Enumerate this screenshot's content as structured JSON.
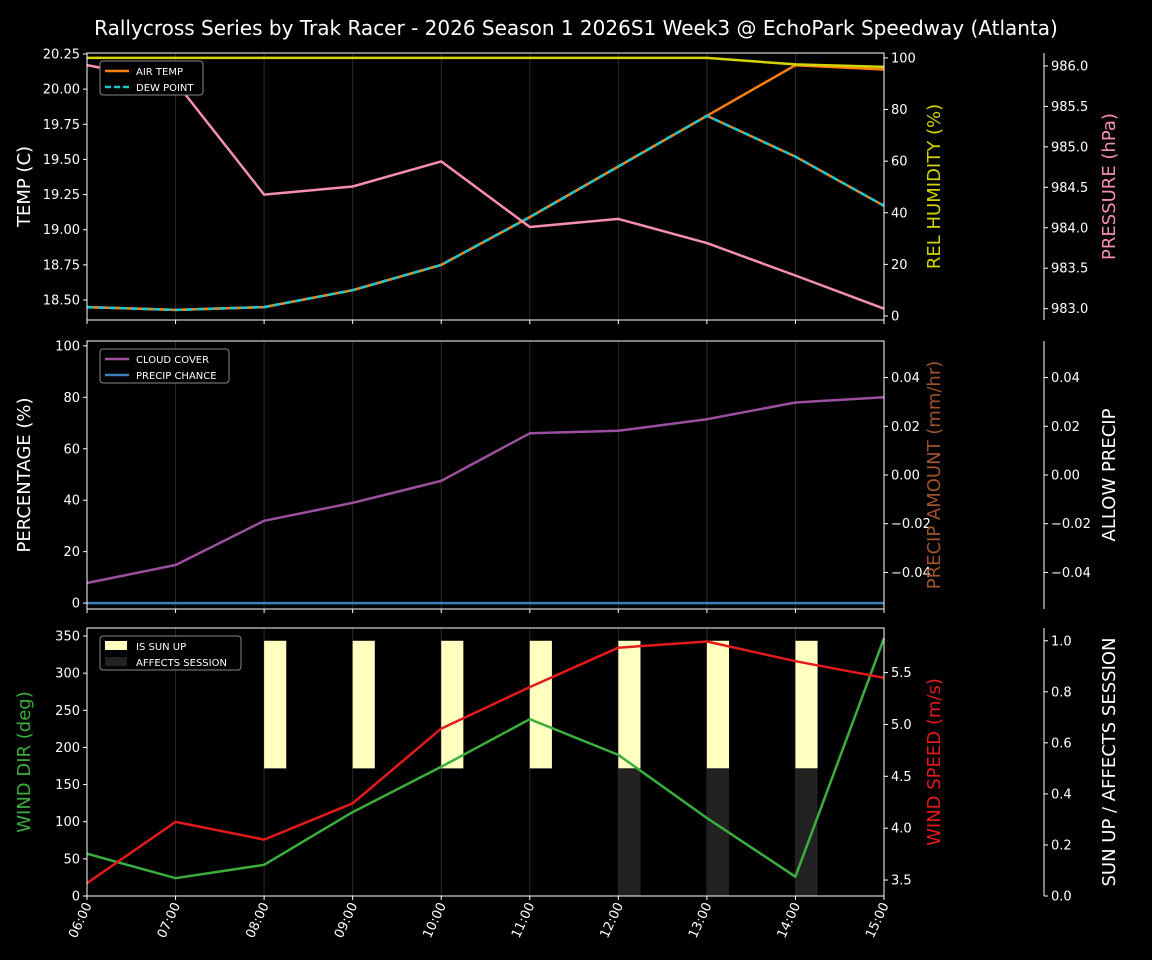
{
  "title": "Rallycross Series by Trak Racer - 2026 Season 1 2026S1 Week3 @ EchoPark Speedway (Atlanta)",
  "chart_data": {
    "type": "line",
    "x": [
      "06:00",
      "07:00",
      "08:00",
      "09:00",
      "10:00",
      "11:00",
      "12:00",
      "13:00",
      "14:00",
      "15:00"
    ],
    "panels": [
      {
        "axes": [
          {
            "label": "TEMP (C)",
            "color": "#ffffff",
            "side": "left",
            "ylim": [
              18.358,
              20.257
            ],
            "ticks": [
              "18.50",
              "18.75",
              "19.00",
              "19.25",
              "19.50",
              "19.75",
              "20.00",
              "20.25"
            ]
          },
          {
            "label": "REL HUMIDITY (%)",
            "color": "#d4d400",
            "side": "right",
            "ylim": [
              -1.55,
              101.9
            ],
            "ticks": [
              "0",
              "20",
              "40",
              "60",
              "80",
              "100"
            ]
          },
          {
            "label": "PRESSURE (hPa)",
            "color": "#f48fb1",
            "side": "far-right",
            "ylim": [
              982.86,
              986.16
            ],
            "ticks": [
              "983.0",
              "983.5",
              "984.0",
              "984.5",
              "985.0",
              "985.5",
              "986.0"
            ]
          }
        ],
        "series": [
          {
            "name": "AIR TEMP",
            "axis": 0,
            "color": "#ff7f0e",
            "dash": false,
            "values": [
              18.45,
              18.43,
              18.45,
              18.57,
              18.75,
              19.09,
              19.45,
              19.81,
              20.17,
              20.14
            ]
          },
          {
            "name": "DEW POINT",
            "axis": 0,
            "color": "#17c8d0",
            "dash": true,
            "values": [
              18.45,
              18.43,
              18.45,
              18.57,
              18.75,
              19.09,
              19.45,
              19.81,
              19.52,
              19.17
            ]
          },
          {
            "axis": 1,
            "color": "#d4d400",
            "dash": false,
            "values": [
              100,
              100,
              100,
              100,
              100,
              100,
              100,
              100,
              97.5,
              96.5
            ]
          },
          {
            "axis": 2,
            "color": "#f48fb1",
            "dash": false,
            "values": [
              986.01,
              985.8,
              984.41,
              984.51,
              984.82,
              984.01,
              984.11,
              983.81,
              983.41,
              983.0
            ]
          }
        ],
        "legend": [
          "AIR TEMP",
          "DEW POINT"
        ],
        "legend_position": "top-left"
      },
      {
        "axes": [
          {
            "label": "PERCENTAGE (%)",
            "color": "#ffffff",
            "side": "left",
            "ylim": [
              -2.3,
              101.9
            ],
            "ticks": [
              "0",
              "20",
              "40",
              "60",
              "80",
              "100"
            ]
          },
          {
            "label": "PRECIP AMOUNT (mm/hr)",
            "color": "#a0522d",
            "side": "right",
            "ylim": [
              -0.055,
              0.055
            ],
            "ticks": [
              "−0.04",
              "−0.02",
              "0.00",
              "0.02",
              "0.04"
            ]
          },
          {
            "label": "ALLOW PRECIP",
            "color": "#ffffff",
            "side": "far-right",
            "ylim": [
              -0.055,
              0.055
            ],
            "ticks": [
              "−0.04",
              "−0.02",
              "0.00",
              "0.02",
              "0.04"
            ]
          }
        ],
        "series": [
          {
            "name": "CLOUD COVER",
            "axis": 0,
            "color": "#9b4f9f",
            "dash": false,
            "values": [
              7.8,
              14.8,
              32,
              39,
              47.5,
              66,
              67,
              71.5,
              78,
              80
            ]
          },
          {
            "name": "PRECIP CHANCE",
            "axis": 0,
            "color": "#3a7fc0",
            "dash": false,
            "values": [
              0,
              0,
              0,
              0,
              0,
              0,
              0,
              0,
              0,
              0
            ]
          }
        ],
        "legend": [
          "CLOUD COVER",
          "PRECIP CHANCE"
        ],
        "legend_position": "top-left"
      },
      {
        "axes": [
          {
            "label": "WIND DIR (deg)",
            "color": "#3cae3c",
            "side": "left",
            "ylim": [
              0,
              360.8
            ],
            "ticks": [
              "0",
              "50",
              "100",
              "150",
              "200",
              "250",
              "300",
              "350"
            ]
          },
          {
            "label": "WIND SPEED (m/s)",
            "color": "#e31a1c",
            "side": "right",
            "ylim": [
              3.346,
              5.93
            ],
            "ticks": [
              "3.5",
              "4.0",
              "4.5",
              "5.0",
              "5.5"
            ]
          },
          {
            "label": "SUN UP / AFFECTS SESSION",
            "color": "#ffffff",
            "side": "far-right",
            "ylim": [
              0,
              1.05
            ],
            "ticks": [
              "0.0",
              "0.2",
              "0.4",
              "0.6",
              "0.8",
              "1.0"
            ]
          }
        ],
        "series": [
          {
            "axis": 0,
            "color": "#3cae3c",
            "dash": false,
            "values": [
              57,
              24,
              42,
              113,
              174,
              238,
              190,
              105,
              26,
              347
            ]
          },
          {
            "axis": 1,
            "color": "#e31a1c",
            "dash": false,
            "values": [
              3.47,
              4.06,
              3.89,
              4.24,
              4.96,
              5.36,
              5.74,
              5.8,
              5.61,
              5.45
            ]
          }
        ],
        "bars": [
          {
            "name": "IS SUN UP",
            "color": "#ffffc0",
            "values": [
              0,
              0,
              1,
              1,
              1,
              1,
              1,
              1,
              1,
              0
            ]
          },
          {
            "name": "AFFECTS SESSION",
            "color": "#222222",
            "values": [
              0,
              0,
              0,
              0,
              0,
              0,
              1,
              1,
              1,
              0
            ]
          }
        ],
        "legend": [
          "IS SUN UP",
          "AFFECTS SESSION"
        ],
        "legend_position": "top-left"
      }
    ]
  }
}
